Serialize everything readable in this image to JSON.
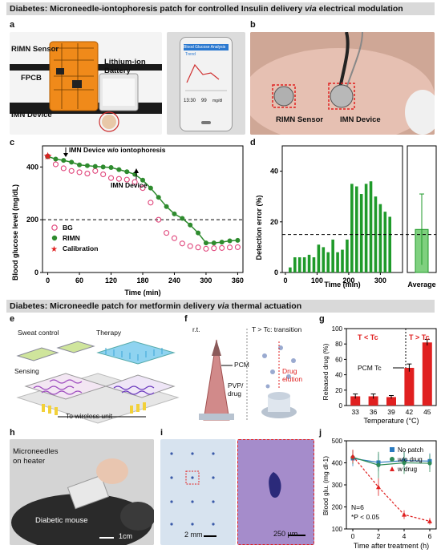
{
  "header1": {
    "prefix": "Diabetes: Microneedle-iontophoresis patch for controlled Insulin delivery ",
    "via": "via",
    "suffix": " electrical modulation"
  },
  "header2": {
    "prefix": "Diabetes: Microneedle patch for metformin delivery ",
    "via": "via",
    "suffix": " thermal actuation"
  },
  "panel_labels": {
    "a": "a",
    "b": "b",
    "c": "c",
    "d": "d",
    "e": "e",
    "f": "f",
    "g": "g",
    "h": "h",
    "i": "i",
    "j": "j"
  },
  "panel_a": {
    "rimn_sensor": "RIMN Sensor",
    "fpcb": "FPCB",
    "battery": "Lithium-ion Battery",
    "imn_device": "IMN Device",
    "phone_app_title": "Blood Glucose Analysis",
    "phone_tab": "Trend",
    "phone_time": "13:30",
    "phone_value": "99",
    "phone_unit": "mg/dl"
  },
  "panel_b": {
    "rimn_sensor": "RIMN Sensor",
    "imn_device": "IMN Device"
  },
  "panel_c": {
    "annotation_top": "IMN Device w/o iontophoresis",
    "annotation_mid": "IMN Device",
    "xlabel": "Time (min)",
    "ylabel": "Blood glucose level (mg/dL)",
    "legend": [
      "BG",
      "RIMN",
      "Calibration"
    ],
    "xticks": [
      "0",
      "60",
      "120",
      "180",
      "240",
      "300",
      "360"
    ],
    "yticks": [
      "0",
      "200",
      "400"
    ]
  },
  "panel_d": {
    "xlabel": "Time (min)",
    "ylabel": "Detection error (%)",
    "xticks": [
      "0",
      "100",
      "200",
      "300"
    ],
    "yticks": [
      "0",
      "20",
      "40"
    ],
    "average_label": "Average"
  },
  "panel_e": {
    "sweat": "Sweat control",
    "therapy": "Therapy",
    "sensing": "Sensing",
    "wireless": "To wireless unit"
  },
  "panel_f": {
    "rt": "r.t.",
    "transition": "T > Tc: transition",
    "pcm": "PCM",
    "pvp": "PVP/",
    "drug": "drug",
    "elution1": "Drug",
    "elution2": "elution"
  },
  "panel_g": {
    "t_less": "T < Tc",
    "t_greater": "T > Tc",
    "pcm_tc": "PCM Tc",
    "ylabel": "Released drug (%)",
    "xlabel": "Temperature (°C)",
    "yticks": [
      "0",
      "20",
      "40",
      "60",
      "80",
      "100"
    ]
  },
  "panel_h": {
    "microneedles": "Microneedles",
    "on_heater": "on heater",
    "mouse": "Diabetic mouse",
    "scale": "1cm"
  },
  "panel_i": {
    "scale1": "2 mm",
    "scale2": "250 μm"
  },
  "panel_j": {
    "xlabel": "Time after treatment (h)",
    "ylabel": "Blood glu. (mg dl-1)",
    "legend": [
      "No patch",
      "w/o drug",
      "w drug"
    ],
    "n": "N=6",
    "p": "*P < 0.05",
    "xticks": [
      "0",
      "2",
      "4",
      "6"
    ],
    "yticks": [
      "100",
      "200",
      "300",
      "400",
      "500"
    ]
  },
  "chart_data": [
    {
      "type": "line",
      "xlabel": "Time (min)",
      "ylabel": "Blood glucose level (mg/dL)",
      "xlim": [
        -10,
        370
      ],
      "ylim": [
        0,
        480
      ],
      "series": [
        {
          "name": "BG",
          "marker": "open-circle",
          "color": "#e0457b",
          "x": [
            0,
            15,
            30,
            45,
            60,
            75,
            90,
            105,
            120,
            135,
            150,
            165,
            180,
            195,
            210,
            225,
            240,
            255,
            270,
            285,
            300,
            315,
            330,
            345,
            360
          ],
          "y": [
            440,
            410,
            395,
            385,
            380,
            375,
            385,
            372,
            358,
            355,
            352,
            343,
            320,
            265,
            200,
            150,
            130,
            110,
            100,
            95,
            90,
            92,
            93,
            95,
            96
          ]
        },
        {
          "name": "RIMN",
          "marker": "filled-circle",
          "color": "#2e8b2e",
          "x": [
            0,
            15,
            30,
            45,
            60,
            75,
            90,
            105,
            120,
            135,
            150,
            165,
            180,
            195,
            210,
            225,
            240,
            255,
            270,
            285,
            300,
            315,
            330,
            345,
            360
          ],
          "y": [
            440,
            430,
            425,
            418,
            408,
            405,
            402,
            400,
            398,
            390,
            382,
            372,
            350,
            320,
            285,
            250,
            222,
            205,
            180,
            150,
            112,
            112,
            115,
            120,
            122
          ]
        },
        {
          "name": "Calibration",
          "marker": "star",
          "color": "#e02020",
          "x": [
            0
          ],
          "y": [
            440
          ]
        }
      ],
      "reference_line": 200
    },
    {
      "type": "bar",
      "xlabel": "Time (min)",
      "ylabel": "Detection error (%)",
      "ylim": [
        0,
        50
      ],
      "reference_line": 15,
      "x": [
        0,
        15,
        30,
        45,
        60,
        75,
        90,
        105,
        120,
        135,
        150,
        165,
        180,
        195,
        210,
        225,
        240,
        255,
        270,
        285,
        300,
        315,
        330,
        345
      ],
      "values": [
        0,
        2,
        6,
        6,
        6,
        7,
        6,
        11,
        10,
        8,
        13,
        8,
        9,
        13,
        35,
        34,
        31,
        35,
        36,
        30,
        27,
        24,
        22,
        0
      ],
      "average": {
        "value": 17,
        "error": 14
      }
    },
    {
      "type": "bar",
      "xlabel": "Temperature (°C)",
      "ylabel": "Released drug (%)",
      "categories": [
        "33",
        "36",
        "39",
        "42",
        "45"
      ],
      "values": [
        12,
        12,
        11,
        49,
        82
      ],
      "errors": [
        3,
        3,
        2,
        5,
        4
      ],
      "ylim": [
        0,
        100
      ]
    },
    {
      "type": "line",
      "xlabel": "Time after treatment (h)",
      "ylabel": "Blood glu. (mg dl-1)",
      "xlim": [
        -0.5,
        6.5
      ],
      "ylim": [
        100,
        500
      ],
      "series": [
        {
          "name": "No patch",
          "color": "#2a7abf",
          "marker": "square",
          "x": [
            0,
            2,
            4,
            6
          ],
          "y": [
            420,
            402,
            410,
            408
          ],
          "err": [
            35,
            40,
            40,
            35
          ]
        },
        {
          "name": "w/o drug",
          "color": "#2e8b57",
          "marker": "circle",
          "x": [
            0,
            2,
            4,
            6
          ],
          "y": [
            425,
            390,
            400,
            398
          ],
          "err": [
            30,
            60,
            50,
            40
          ]
        },
        {
          "name": "w drug",
          "color": "#e02020",
          "marker": "triangle",
          "x": [
            0,
            2,
            4,
            6
          ],
          "y": [
            430,
            290,
            165,
            135
          ],
          "err": [
            30,
            40,
            20,
            15
          ]
        }
      ]
    }
  ]
}
